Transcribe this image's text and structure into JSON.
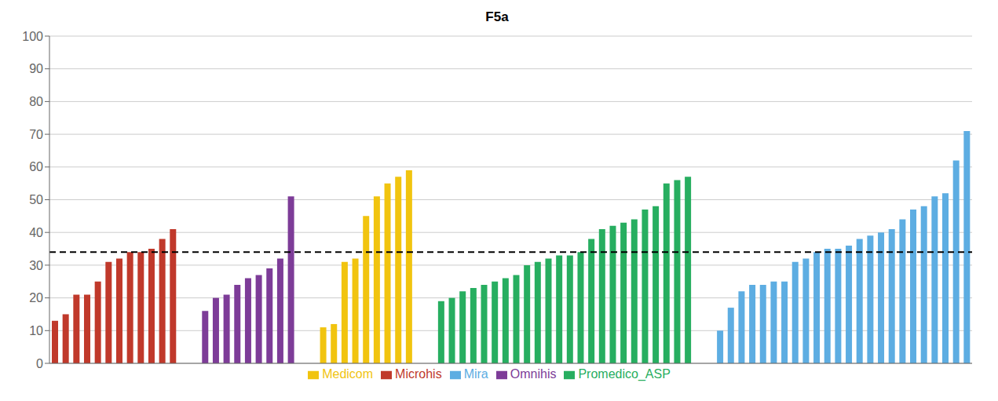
{
  "chart_data": {
    "type": "bar",
    "title": "F5a",
    "categories": [
      null,
      null,
      null,
      null,
      null,
      null,
      null,
      null,
      null,
      null,
      null,
      null,
      null,
      null,
      null,
      null,
      null,
      null,
      null,
      null,
      null,
      null,
      null,
      null,
      null,
      null,
      null,
      null,
      null,
      null,
      null,
      null,
      null,
      null,
      null,
      null,
      null,
      null,
      null,
      null,
      null,
      null,
      null,
      null,
      null,
      null,
      null,
      null,
      null,
      null,
      null,
      null,
      null,
      null,
      null,
      null,
      null,
      null,
      null,
      null,
      null,
      null,
      null,
      null,
      null,
      null,
      null,
      null,
      null,
      null,
      null,
      null,
      null,
      null,
      null,
      null,
      null,
      null
    ],
    "series": [
      {
        "name": "Microhis",
        "color": "#c0392b",
        "values": [
          13,
          15,
          21,
          21,
          25,
          31,
          32,
          34,
          34,
          35,
          38,
          41,
          null,
          null,
          null,
          null,
          null,
          null,
          null,
          null,
          null,
          null,
          null,
          null,
          null,
          null,
          null,
          null,
          null,
          null,
          null,
          null,
          null,
          null,
          null,
          null,
          null,
          null,
          null,
          null,
          null,
          null,
          null,
          null,
          null,
          null,
          null,
          null,
          null,
          null,
          null,
          null,
          null,
          null,
          null,
          null,
          null,
          null,
          null,
          null,
          null,
          null,
          null,
          null,
          null,
          null,
          null,
          null,
          null,
          null,
          null,
          null,
          null,
          null,
          null,
          null,
          null,
          null
        ]
      },
      {
        "name": "Omnihis",
        "color": "#7d3c98",
        "values": [
          null,
          null,
          null,
          null,
          null,
          null,
          null,
          null,
          null,
          null,
          null,
          null,
          16,
          20,
          21,
          24,
          26,
          27,
          29,
          32,
          51,
          null,
          null,
          null,
          null,
          null,
          null,
          null,
          null,
          null,
          null,
          null,
          null,
          null,
          null,
          null,
          null,
          null,
          null,
          null,
          null,
          null,
          null,
          null,
          null,
          null,
          null,
          null,
          null,
          null,
          null,
          null,
          null,
          null,
          null,
          null,
          null,
          null,
          null,
          null,
          null,
          null,
          null,
          null,
          null,
          null,
          null,
          null,
          null,
          null,
          null,
          null,
          null,
          null,
          null,
          null,
          null,
          null
        ]
      },
      {
        "name": "Medicom",
        "color": "#f1c40f",
        "values": [
          null,
          null,
          null,
          null,
          null,
          null,
          null,
          null,
          null,
          null,
          null,
          null,
          null,
          null,
          null,
          null,
          null,
          null,
          null,
          null,
          null,
          11,
          12,
          31,
          32,
          45,
          51,
          55,
          57,
          59,
          null,
          null,
          null,
          null,
          null,
          null,
          null,
          null,
          null,
          null,
          null,
          null,
          null,
          null,
          null,
          null,
          null,
          null,
          null,
          null,
          null,
          null,
          null,
          null,
          null,
          null,
          null,
          null,
          null,
          null,
          null,
          null,
          null,
          null,
          null,
          null,
          null,
          null,
          null,
          null,
          null,
          null,
          null,
          null,
          null,
          null,
          null,
          null
        ]
      },
      {
        "name": "Promedico_ASP",
        "color": "#27ae60",
        "values": [
          null,
          null,
          null,
          null,
          null,
          null,
          null,
          null,
          null,
          null,
          null,
          null,
          null,
          null,
          null,
          null,
          null,
          null,
          null,
          null,
          null,
          null,
          null,
          null,
          null,
          null,
          null,
          null,
          null,
          null,
          19,
          20,
          22,
          23,
          24,
          25,
          26,
          27,
          30,
          31,
          32,
          33,
          33,
          34,
          38,
          41,
          42,
          43,
          44,
          47,
          48,
          55,
          56,
          57,
          null,
          null,
          null,
          null,
          null,
          null,
          null,
          null,
          null,
          null,
          null,
          null,
          null,
          null,
          null,
          null,
          null,
          null,
          null,
          null,
          null,
          null,
          null,
          null
        ]
      },
      {
        "name": "Mira",
        "color": "#5dade2",
        "values": [
          null,
          null,
          null,
          null,
          null,
          null,
          null,
          null,
          null,
          null,
          null,
          null,
          null,
          null,
          null,
          null,
          null,
          null,
          null,
          null,
          null,
          null,
          null,
          null,
          null,
          null,
          null,
          null,
          null,
          null,
          null,
          null,
          null,
          null,
          null,
          null,
          null,
          null,
          null,
          null,
          null,
          null,
          null,
          null,
          null,
          null,
          null,
          null,
          null,
          null,
          null,
          null,
          null,
          null,
          10,
          17,
          22,
          24,
          24,
          25,
          25,
          31,
          32,
          34,
          35,
          35,
          36,
          38,
          39,
          40,
          41,
          44,
          47,
          48,
          51,
          52,
          62,
          71
        ]
      }
    ],
    "ylim": [
      0,
      100
    ],
    "yticks": [
      0,
      10,
      20,
      30,
      40,
      50,
      60,
      70,
      80,
      90,
      100
    ],
    "hline": {
      "y": 34,
      "color": "#000000",
      "line_style": "dashed"
    },
    "grid": true,
    "legend": "bottom",
    "tick_labels": "y"
  }
}
